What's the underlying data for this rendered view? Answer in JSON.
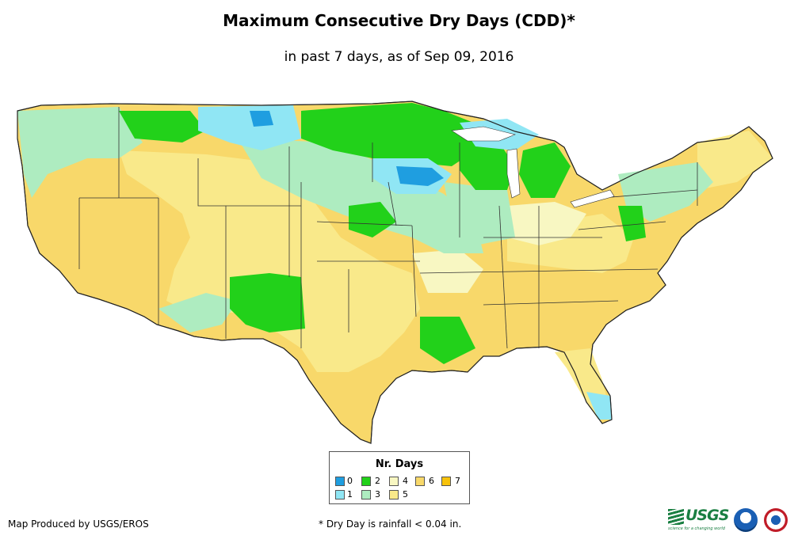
{
  "title": "Maximum Consecutive Dry Days (CDD)*",
  "subtitle": "in past 7 days, as of Sep 09, 2016",
  "legend": {
    "title": "Nr. Days",
    "items": [
      {
        "label": "0",
        "color": "#1f9ee0"
      },
      {
        "label": "1",
        "color": "#90e6f4"
      },
      {
        "label": "2",
        "color": "#22d11a"
      },
      {
        "label": "3",
        "color": "#aeecc0"
      },
      {
        "label": "4",
        "color": "#f8f7c2"
      },
      {
        "label": "5",
        "color": "#f9e98a"
      },
      {
        "label": "6",
        "color": "#f8d86a"
      },
      {
        "label": "7",
        "color": "#f7c20b"
      }
    ]
  },
  "footer": {
    "left": "Map Produced by USGS/EROS",
    "note": "* Dry Day is rainfall < 0.04 in."
  },
  "logos": {
    "usgs": "USGS",
    "usgs_tagline": "science for a changing world",
    "noaa": "noaa-logo",
    "nws": "nws-logo"
  }
}
